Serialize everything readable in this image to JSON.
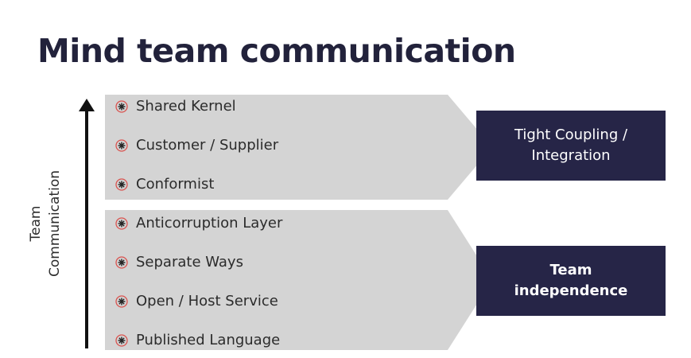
{
  "title": "Mind team communication",
  "axis_label": {
    "line1": "Team",
    "line2": "Communication"
  },
  "groups": [
    {
      "items": [
        "Shared Kernel",
        "Customer / Supplier",
        "Conformist"
      ],
      "box": {
        "line1": "Tight Coupling /",
        "line2": "Integration"
      }
    },
    {
      "items": [
        "Anticorruption Layer",
        "Separate Ways",
        "Open / Host Service",
        "Published Language"
      ],
      "box": {
        "line1": "Team",
        "line2": "independence"
      }
    }
  ],
  "colors": {
    "title": "#22223b",
    "box": "#262547",
    "chevron": "#d4d4d4",
    "bullet_ring": "#d9534f"
  },
  "icons": {
    "bullet": "starburst-bullet-icon",
    "arrow": "up-arrow-icon"
  }
}
